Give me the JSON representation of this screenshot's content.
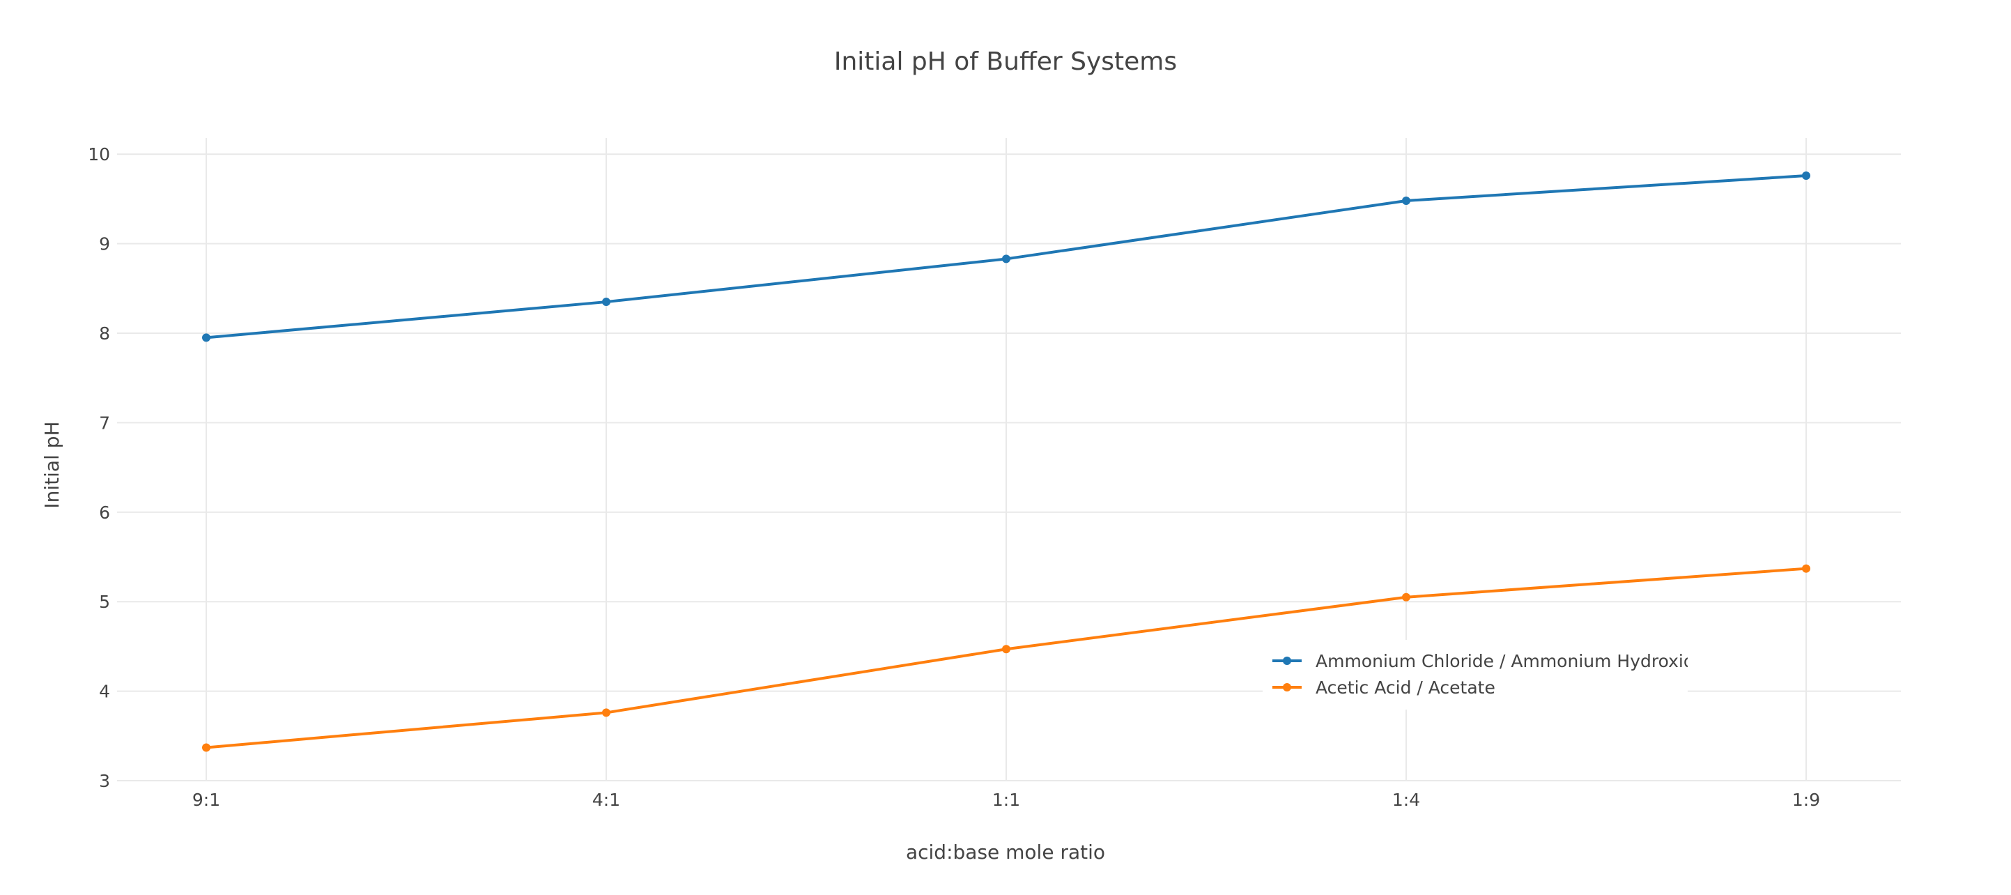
{
  "chart_data": {
    "type": "line",
    "title": "Initial pH of Buffer Systems",
    "xlabel": "acid:base mole ratio",
    "ylabel": "Initial pH",
    "categories": [
      "9:1",
      "4:1",
      "1:1",
      "1:4",
      "1:9"
    ],
    "ylim": [
      3,
      10.2
    ],
    "yticks": [
      3,
      4,
      5,
      6,
      7,
      8,
      9,
      10
    ],
    "grid": true,
    "legend_position": "inside-lower-right",
    "series": [
      {
        "name": "Ammonium Chloride / Ammonium Hydroxide",
        "color": "#1f77b4",
        "values": [
          7.95,
          8.35,
          8.83,
          9.48,
          9.76
        ]
      },
      {
        "name": "Acetic Acid / Acetate",
        "color": "#ff7f0e",
        "values": [
          3.37,
          3.76,
          4.47,
          5.05,
          5.37
        ]
      }
    ]
  }
}
